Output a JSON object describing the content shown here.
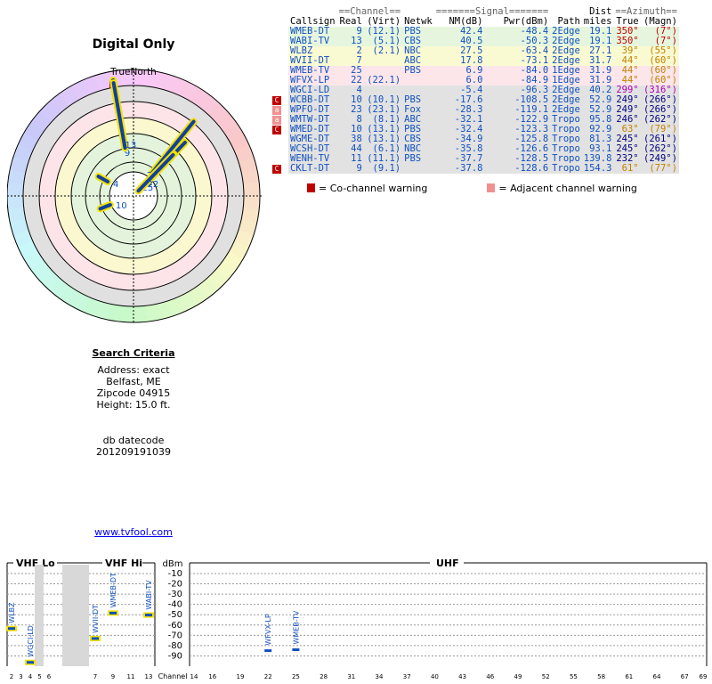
{
  "page": {
    "title": "Digital Only",
    "compass_label": "TrueNorth",
    "north_marker": "N",
    "site_link": "www.tvfool.com"
  },
  "search_criteria": {
    "heading": "Search Criteria",
    "lines": [
      "Address: exact",
      "Belfast, ME",
      "Zipcode 04915",
      "Height: 15.0 ft."
    ],
    "datecode_label": "db datecode",
    "datecode": "201209191039"
  },
  "table": {
    "group_headers": {
      "channel": "==Channel==",
      "signal": "=======Signal=======",
      "dist": "Dist",
      "azimuth": "==Azimuth=="
    },
    "columns": [
      "Callsign",
      "Real",
      "(Virt)",
      "Netwk",
      "NM(dB)",
      "Pwr(dBm)",
      "Path",
      "miles",
      "True",
      "(Magn)"
    ],
    "rows": [
      {
        "call": "WMEB-DT",
        "real": "9",
        "virt": "(12.1)",
        "net": "PBS",
        "nm": "42.4",
        "pwr": "-48.4",
        "path": "2Edge",
        "miles": "19.1",
        "true": "350°",
        "magn": "(7°)",
        "zone": "green",
        "azc": "#c00000",
        "warn": ""
      },
      {
        "call": "WABI-TV",
        "real": "13",
        "virt": "(5.1)",
        "net": "CBS",
        "nm": "40.5",
        "pwr": "-50.3",
        "path": "2Edge",
        "miles": "19.1",
        "true": "350°",
        "magn": "(7°)",
        "zone": "green",
        "azc": "#c00000",
        "warn": ""
      },
      {
        "call": "WLBZ",
        "real": "2",
        "virt": "(2.1)",
        "net": "NBC",
        "nm": "27.5",
        "pwr": "-63.4",
        "path": "2Edge",
        "miles": "27.1",
        "true": "39°",
        "magn": "(55°)",
        "zone": "yellow",
        "azc": "#c08000",
        "warn": ""
      },
      {
        "call": "WVII-DT",
        "real": "7",
        "virt": "",
        "net": "ABC",
        "nm": "17.8",
        "pwr": "-73.1",
        "path": "2Edge",
        "miles": "31.7",
        "true": "44°",
        "magn": "(60°)",
        "zone": "yellow",
        "azc": "#c08000",
        "warn": ""
      },
      {
        "call": "WMEB-TV",
        "real": "25",
        "virt": "",
        "net": "PBS",
        "nm": "6.9",
        "pwr": "-84.0",
        "path": "1Edge",
        "miles": "31.9",
        "true": "44°",
        "magn": "(60°)",
        "zone": "pink",
        "azc": "#c08000",
        "warn": ""
      },
      {
        "call": "WFVX-LP",
        "real": "22",
        "virt": "(22.1)",
        "net": "",
        "nm": "6.0",
        "pwr": "-84.9",
        "path": "1Edge",
        "miles": "31.9",
        "true": "44°",
        "magn": "(60°)",
        "zone": "pink",
        "azc": "#c08000",
        "warn": ""
      },
      {
        "call": "WGCI-LD",
        "real": "4",
        "virt": "",
        "net": "",
        "nm": "-5.4",
        "pwr": "-96.3",
        "path": "2Edge",
        "miles": "40.2",
        "true": "299°",
        "magn": "(316°)",
        "zone": "grey",
        "azc": "#b000b0",
        "warn": ""
      },
      {
        "call": "WCBB-DT",
        "real": "10",
        "virt": "(10.1)",
        "net": "PBS",
        "nm": "-17.6",
        "pwr": "-108.5",
        "path": "2Edge",
        "miles": "52.9",
        "true": "249°",
        "magn": "(266°)",
        "zone": "grey",
        "azc": "#000080",
        "warn": "co"
      },
      {
        "call": "WPFO-DT",
        "real": "23",
        "virt": "(23.1)",
        "net": "Fox",
        "nm": "-28.3",
        "pwr": "-119.1",
        "path": "2Edge",
        "miles": "52.9",
        "true": "249°",
        "magn": "(266°)",
        "zone": "grey",
        "azc": "#000080",
        "warn": "adj"
      },
      {
        "call": "WMTW-DT",
        "real": "8",
        "virt": "(8.1)",
        "net": "ABC",
        "nm": "-32.1",
        "pwr": "-122.9",
        "path": "Tropo",
        "miles": "95.8",
        "true": "246°",
        "magn": "(262°)",
        "zone": "grey",
        "azc": "#000080",
        "warn": "adj"
      },
      {
        "call": "WMED-DT",
        "real": "10",
        "virt": "(13.1)",
        "net": "PBS",
        "nm": "-32.4",
        "pwr": "-123.3",
        "path": "Tropo",
        "miles": "92.9",
        "true": "63°",
        "magn": "(79°)",
        "zone": "grey",
        "azc": "#c08000",
        "warn": "co"
      },
      {
        "call": "WGME-DT",
        "real": "38",
        "virt": "(13.1)",
        "net": "CBS",
        "nm": "-34.9",
        "pwr": "-125.8",
        "path": "Tropo",
        "miles": "81.3",
        "true": "245°",
        "magn": "(261°)",
        "zone": "grey",
        "azc": "#000080",
        "warn": ""
      },
      {
        "call": "WCSH-DT",
        "real": "44",
        "virt": "(6.1)",
        "net": "NBC",
        "nm": "-35.8",
        "pwr": "-126.6",
        "path": "Tropo",
        "miles": "93.1",
        "true": "245°",
        "magn": "(262°)",
        "zone": "grey",
        "azc": "#000080",
        "warn": ""
      },
      {
        "call": "WENH-TV",
        "real": "11",
        "virt": "(11.1)",
        "net": "PBS",
        "nm": "-37.7",
        "pwr": "-128.5",
        "path": "Tropo",
        "miles": "139.8",
        "true": "232°",
        "magn": "(249°)",
        "zone": "grey",
        "azc": "#000080",
        "warn": ""
      },
      {
        "call": "CKLT-DT",
        "real": "9",
        "virt": "(9.1)",
        "net": "",
        "nm": "-37.8",
        "pwr": "-128.6",
        "path": "Tropo",
        "miles": "154.3",
        "true": "61°",
        "magn": "(77°)",
        "zone": "grey",
        "azc": "#c08000",
        "warn": "co"
      }
    ],
    "zone_colors": {
      "green": "#e6f6de",
      "yellow": "#fafad2",
      "pink": "#fce6ea",
      "grey": "#e2e2e2"
    },
    "warn_colors": {
      "co": "#c00000",
      "adj": "#f09090"
    },
    "warn_glyphs": {
      "co": "C",
      "adj": "a"
    }
  },
  "legend": {
    "co_label": "= Co-channel warning",
    "adj_label": "= Adjacent channel warning"
  },
  "radar": {
    "spokes": [
      {
        "label": "9",
        "deg": 350,
        "nm": 42.4
      },
      {
        "label": "13",
        "deg": 350,
        "nm": 40.5
      },
      {
        "label": "2",
        "deg": 39,
        "nm": 27.5
      },
      {
        "label": "7",
        "deg": 44,
        "nm": 17.8
      },
      {
        "label": "25",
        "deg": 44,
        "nm": 6.9
      },
      {
        "label": "22",
        "deg": 44,
        "nm": 6.0
      },
      {
        "label": "4",
        "deg": 299,
        "nm": -5.4
      },
      {
        "label": "10",
        "deg": 249,
        "nm": -17.6
      }
    ]
  },
  "spectrum": {
    "sections": {
      "vhf_lo": "VHF Lo",
      "vhf_hi": "VHF Hi",
      "uhf": "UHF"
    },
    "y_unit": "dBm",
    "y_ticks": [
      "-10",
      "-20",
      "-30",
      "-40",
      "-50",
      "-60",
      "-70",
      "-80",
      "-90"
    ],
    "channel_label": "Channel",
    "lo_ticks": [
      "2",
      "3",
      "4",
      "5",
      "6"
    ],
    "hi_ticks": [
      "7",
      "9",
      "11",
      "13"
    ],
    "uhf_ticks": [
      "14",
      "16",
      "19",
      "22",
      "25",
      "28",
      "31",
      "34",
      "37",
      "40",
      "43",
      "46",
      "49",
      "52",
      "55",
      "58",
      "61",
      "64",
      "67",
      "69"
    ],
    "stations": [
      {
        "name": "WLBZ",
        "band": "lo",
        "ch": 2,
        "dbm": -63.4
      },
      {
        "name": "WGCI-LD",
        "band": "lo",
        "ch": 4,
        "dbm": -96.3
      },
      {
        "name": "WVII-DT",
        "band": "hi",
        "ch": 7,
        "dbm": -73.1
      },
      {
        "name": "WMEB-DT",
        "band": "hi",
        "ch": 9,
        "dbm": -48.4
      },
      {
        "name": "WABI-TV",
        "band": "hi",
        "ch": 13,
        "dbm": -50.3
      },
      {
        "name": "WFVX-LP",
        "band": "uhf",
        "ch": 22,
        "dbm": -84.9
      },
      {
        "name": "WMEB-TV",
        "band": "uhf",
        "ch": 25,
        "dbm": -84.0
      }
    ]
  }
}
